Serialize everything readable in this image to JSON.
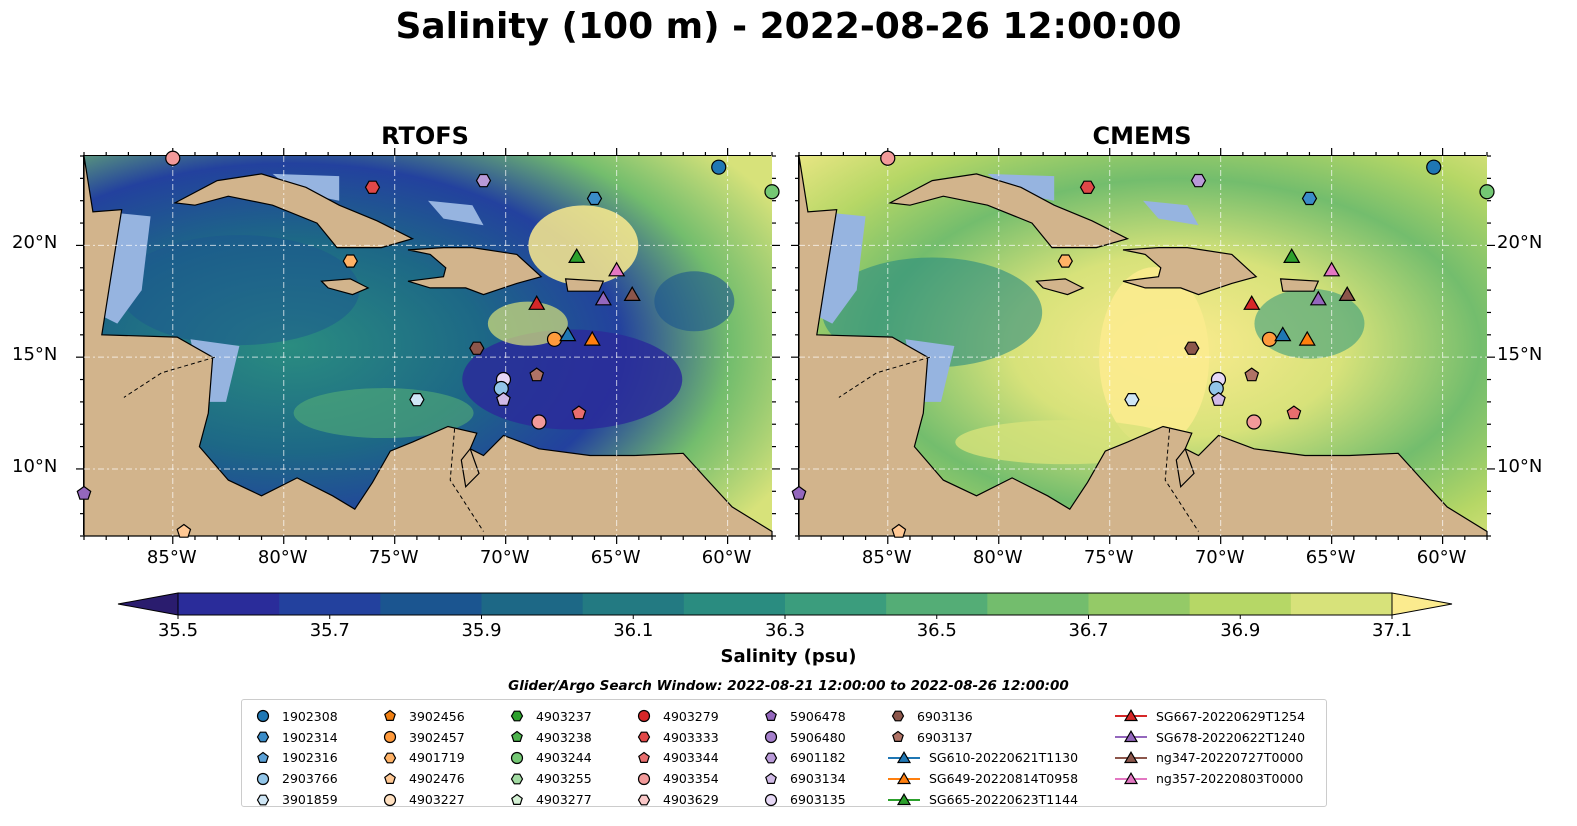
{
  "title": "Salinity (100 m) - 2022-08-26 12:00:00",
  "panels": [
    {
      "title": "RTOFS",
      "style": "rtofs"
    },
    {
      "title": "CMEMS",
      "style": "cmems"
    }
  ],
  "map": {
    "lon_range": [
      -89,
      -58
    ],
    "lat_range": [
      7,
      24
    ],
    "lon_ticks": [
      {
        "lon": -85,
        "label": "85°W"
      },
      {
        "lon": -80,
        "label": "80°W"
      },
      {
        "lon": -75,
        "label": "75°W"
      },
      {
        "lon": -70,
        "label": "70°W"
      },
      {
        "lon": -65,
        "label": "65°W"
      },
      {
        "lon": -60,
        "label": "60°W"
      }
    ],
    "lat_ticks": [
      {
        "lat": 20,
        "label": "20°N"
      },
      {
        "lat": 15,
        "label": "15°N"
      },
      {
        "lat": 10,
        "label": "10°N"
      }
    ],
    "land_color": "#d2b48c",
    "shelf_color": "#96b4e0"
  },
  "colorbar": {
    "label": "Salinity (psu)",
    "ticks": [
      "35.5",
      "35.7",
      "35.9",
      "36.1",
      "36.3",
      "36.5",
      "36.7",
      "36.9",
      "37.1"
    ],
    "colors": [
      "#2a1c6e",
      "#2a2c9a",
      "#23419e",
      "#1b5590",
      "#1d6886",
      "#237a82",
      "#2a8c80",
      "#3b9d7d",
      "#54ad76",
      "#73bd6d",
      "#94ca67",
      "#b6d766",
      "#d7e27a",
      "#fbeb8e"
    ]
  },
  "search_window": "Glider/Argo Search Window: 2022-08-21 12:00:00 to 2022-08-26 12:00:00",
  "legend": [
    [
      {
        "label": "1902308",
        "marker": "circle",
        "color": "#1f77b4"
      },
      {
        "label": "1902314",
        "marker": "hexagon",
        "color": "#3a8cc8"
      },
      {
        "label": "1902316",
        "marker": "pentagon",
        "color": "#5aa0d6"
      },
      {
        "label": "2903766",
        "marker": "circle",
        "color": "#92c5e8"
      },
      {
        "label": "3901859",
        "marker": "hexagon",
        "color": "#cfe6f5"
      }
    ],
    [
      {
        "label": "3902456",
        "marker": "pentagon",
        "color": "#f07f12"
      },
      {
        "label": "3902457",
        "marker": "circle",
        "color": "#ff9a3c"
      },
      {
        "label": "4901719",
        "marker": "hexagon",
        "color": "#ffb266"
      },
      {
        "label": "4902476",
        "marker": "pentagon",
        "color": "#ffc894"
      },
      {
        "label": "4903227",
        "marker": "circle",
        "color": "#ffe0c0"
      }
    ],
    [
      {
        "label": "4903237",
        "marker": "hexagon",
        "color": "#2ca02c"
      },
      {
        "label": "4903238",
        "marker": "pentagon",
        "color": "#4db34d"
      },
      {
        "label": "4903244",
        "marker": "circle",
        "color": "#74c874"
      },
      {
        "label": "4903255",
        "marker": "hexagon",
        "color": "#a2dba2"
      },
      {
        "label": "4903277",
        "marker": "pentagon",
        "color": "#d4f0d4"
      }
    ],
    [
      {
        "label": "4903279",
        "marker": "circle",
        "color": "#d62728"
      },
      {
        "label": "4903333",
        "marker": "hexagon",
        "color": "#e04848"
      },
      {
        "label": "4903344",
        "marker": "pentagon",
        "color": "#e86e6e"
      },
      {
        "label": "4903354",
        "marker": "circle",
        "color": "#f29a9a"
      },
      {
        "label": "4903629",
        "marker": "hexagon",
        "color": "#fac8c8"
      }
    ],
    [
      {
        "label": "5906478",
        "marker": "pentagon",
        "color": "#9467bd"
      },
      {
        "label": "5906480",
        "marker": "circle",
        "color": "#a680cc"
      },
      {
        "label": "6901182",
        "marker": "hexagon",
        "color": "#b99ad8"
      },
      {
        "label": "6903134",
        "marker": "pentagon",
        "color": "#d0bae6"
      },
      {
        "label": "6903135",
        "marker": "circle",
        "color": "#e6d8f5"
      }
    ],
    [
      {
        "label": "6903136",
        "marker": "hexagon",
        "color": "#8c564b"
      },
      {
        "label": "6903137",
        "marker": "pentagon",
        "color": "#b07366"
      },
      {
        "label": "SG610-20220621T1130",
        "marker": "triangle-line",
        "color": "#1f77b4"
      },
      {
        "label": "SG649-20220814T0958",
        "marker": "triangle-line",
        "color": "#ff7f0e"
      },
      {
        "label": "SG665-20220623T1144",
        "marker": "triangle-line",
        "color": "#2ca02c"
      }
    ],
    [
      {
        "label": "SG667-20220629T1254",
        "marker": "triangle-line",
        "color": "#d62728"
      },
      {
        "label": "SG678-20220622T1240",
        "marker": "triangle-line",
        "color": "#9467bd"
      },
      {
        "label": "ng347-20220727T0000",
        "marker": "triangle-line",
        "color": "#8c564b"
      },
      {
        "label": "ng357-20220803T0000",
        "marker": "triangle-line",
        "color": "#e377c2"
      }
    ]
  ],
  "points": [
    {
      "lon": -85.0,
      "lat": 23.9,
      "marker": "circle",
      "color": "#f29a9a"
    },
    {
      "lon": -76.0,
      "lat": 22.6,
      "marker": "hexagon",
      "color": "#e04848"
    },
    {
      "lon": -71.0,
      "lat": 22.9,
      "marker": "hexagon",
      "color": "#b99ad8"
    },
    {
      "lon": -60.4,
      "lat": 23.5,
      "marker": "circle",
      "color": "#1f77b4"
    },
    {
      "lon": -58.0,
      "lat": 22.4,
      "marker": "circle",
      "color": "#74c874"
    },
    {
      "lon": -66.0,
      "lat": 22.1,
      "marker": "hexagon",
      "color": "#3a8cc8"
    },
    {
      "lon": -77.0,
      "lat": 19.3,
      "marker": "hexagon",
      "color": "#ffb266"
    },
    {
      "lon": -66.8,
      "lat": 19.5,
      "marker": "triangle",
      "color": "#2ca02c"
    },
    {
      "lon": -65.0,
      "lat": 18.9,
      "marker": "triangle",
      "color": "#e377c2"
    },
    {
      "lon": -68.6,
      "lat": 17.4,
      "marker": "triangle",
      "color": "#d62728"
    },
    {
      "lon": -65.6,
      "lat": 17.6,
      "marker": "triangle",
      "color": "#9467bd"
    },
    {
      "lon": -64.3,
      "lat": 17.8,
      "marker": "triangle",
      "color": "#8c564b"
    },
    {
      "lon": -67.8,
      "lat": 15.8,
      "marker": "circle",
      "color": "#ff9a3c"
    },
    {
      "lon": -67.2,
      "lat": 16.0,
      "marker": "triangle",
      "color": "#1f77b4"
    },
    {
      "lon": -66.1,
      "lat": 15.8,
      "marker": "triangle",
      "color": "#ff7f0e"
    },
    {
      "lon": -71.3,
      "lat": 15.4,
      "marker": "hexagon",
      "color": "#8c564b"
    },
    {
      "lon": -68.6,
      "lat": 14.2,
      "marker": "pentagon",
      "color": "#b07366"
    },
    {
      "lon": -70.1,
      "lat": 14.0,
      "marker": "circle",
      "color": "#e6d8f5"
    },
    {
      "lon": -70.2,
      "lat": 13.6,
      "marker": "circle",
      "color": "#92c5e8"
    },
    {
      "lon": -70.1,
      "lat": 13.1,
      "marker": "pentagon",
      "color": "#d0bae6"
    },
    {
      "lon": -74.0,
      "lat": 13.1,
      "marker": "hexagon",
      "color": "#cfe6f5"
    },
    {
      "lon": -68.5,
      "lat": 12.1,
      "marker": "circle",
      "color": "#f29a9a"
    },
    {
      "lon": -66.7,
      "lat": 12.5,
      "marker": "pentagon",
      "color": "#e86e6e"
    },
    {
      "lon": -89.0,
      "lat": 8.9,
      "marker": "pentagon",
      "color": "#9467bd"
    },
    {
      "lon": -84.5,
      "lat": 7.2,
      "marker": "pentagon",
      "color": "#ffc894"
    }
  ]
}
